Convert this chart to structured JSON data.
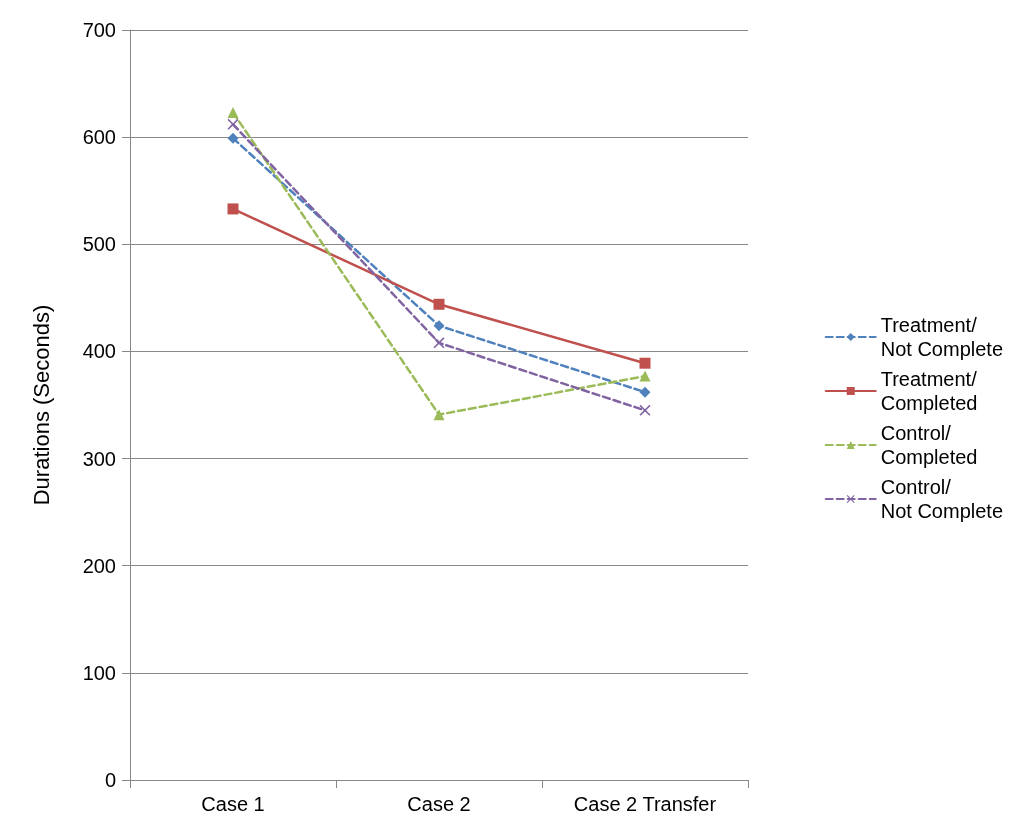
{
  "chart_data": {
    "type": "line",
    "ylabel": "Durations (Seconds)",
    "categories": [
      "Case 1",
      "Case 2",
      "Case 2 Transfer"
    ],
    "series": [
      {
        "name": "Treatment/ Not Complete",
        "color": "#4f81bd",
        "values": [
          599,
          424,
          362
        ],
        "marker": "diamond",
        "line_style": "dashed"
      },
      {
        "name": "Treatment/ Completed",
        "color": "#c0504d",
        "values": [
          533,
          444,
          389
        ],
        "marker": "square",
        "line_style": "solid"
      },
      {
        "name": "Control/ Completed",
        "color": "#9bbb59",
        "values": [
          623,
          341,
          377
        ],
        "marker": "triangle",
        "line_style": "dashed"
      },
      {
        "name": "Control/ Not Complete",
        "color": "#8064a2",
        "values": [
          612,
          408,
          345
        ],
        "marker": "cross",
        "line_style": "dashed"
      }
    ],
    "ylim": [
      0,
      700
    ],
    "yticks": [
      0,
      100,
      200,
      300,
      400,
      500,
      600,
      700
    ],
    "grid": "y",
    "legend": "right"
  }
}
